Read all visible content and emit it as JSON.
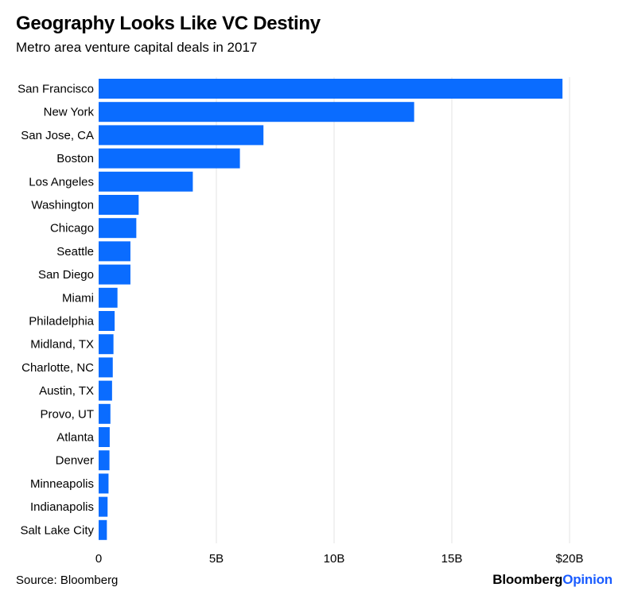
{
  "chart_data": {
    "type": "bar",
    "orientation": "horizontal",
    "title": "Geography Looks Like VC Destiny",
    "subtitle": "Metro area venture capital deals in 2017",
    "categories": [
      "San Francisco",
      "New York",
      "San Jose, CA",
      "Boston",
      "Los Angeles",
      "Washington",
      "Chicago",
      "Seattle",
      "San Diego",
      "Miami",
      "Philadelphia",
      "Midland, TX",
      "Charlotte, NC",
      "Austin, TX",
      "Provo, UT",
      "Atlanta",
      "Denver",
      "Minneapolis",
      "Indianapolis",
      "Salt Lake City"
    ],
    "values": [
      19.7,
      13.4,
      7.0,
      6.0,
      4.0,
      1.7,
      1.6,
      1.35,
      1.35,
      0.8,
      0.68,
      0.63,
      0.6,
      0.57,
      0.5,
      0.47,
      0.46,
      0.42,
      0.38,
      0.35
    ],
    "xlim": [
      0,
      20
    ],
    "xticks": [
      0,
      5,
      10,
      15,
      20
    ],
    "xtick_labels": [
      "0",
      "5B",
      "10B",
      "15B",
      "$20B"
    ],
    "grid": true,
    "bar_color": "#0a6cff",
    "grid_color": "#e3e3e3"
  },
  "footer": {
    "source": "Source: Bloomberg",
    "brand_bold": "Bloomberg",
    "brand_accent": "Opinion"
  }
}
